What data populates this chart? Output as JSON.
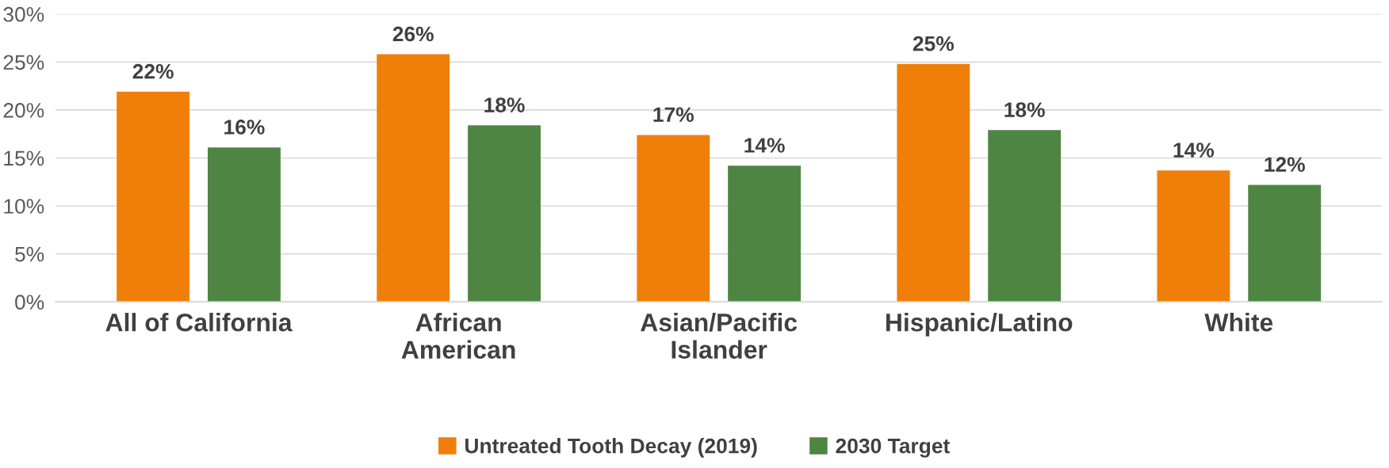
{
  "chart_data": {
    "type": "bar",
    "categories": [
      "All of California",
      "African\nAmerican",
      "Asian/Pacific\nIslander",
      "Hispanic/Latino",
      "White"
    ],
    "series": [
      {
        "name": "Untreated Tooth Decay (2019)",
        "color": "#f07f09",
        "values": [
          21.9,
          25.8,
          17.4,
          24.8,
          13.7
        ],
        "value_labels": [
          "22%",
          "26%",
          "17%",
          "25%",
          "14%"
        ]
      },
      {
        "name": "2030 Target",
        "color": "#4e8542",
        "values": [
          16.1,
          18.4,
          14.2,
          17.9,
          12.2
        ],
        "value_labels": [
          "16%",
          "18%",
          "14%",
          "18%",
          "12%"
        ]
      }
    ],
    "ylim": [
      0,
      30
    ],
    "yticks": [
      {
        "value": 0,
        "label": "0%"
      },
      {
        "value": 5,
        "label": "5%"
      },
      {
        "value": 10,
        "label": "10%"
      },
      {
        "value": 15,
        "label": "15%"
      },
      {
        "value": 20,
        "label": "20%"
      },
      {
        "value": 25,
        "label": "25%"
      },
      {
        "value": 30,
        "label": "30%"
      }
    ],
    "grid": "y",
    "legend": "bottom"
  }
}
